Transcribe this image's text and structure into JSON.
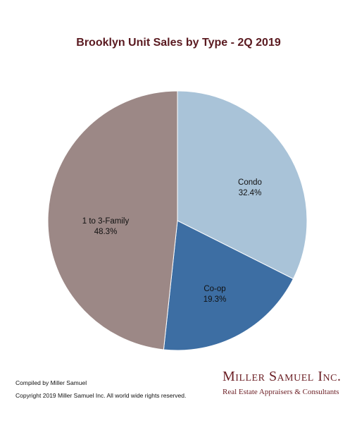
{
  "chart_data": {
    "type": "pie",
    "title": "Brooklyn Unit Sales by Type - 2Q 2019",
    "slices": [
      {
        "label": "Condo",
        "value": 32.4,
        "value_label": "32.4%",
        "color": "#a9c3d8"
      },
      {
        "label": "Co-op",
        "value": 19.3,
        "value_label": "19.3%",
        "color": "#3d6ea3"
      },
      {
        "label": "1 to 3-Family",
        "value": 48.3,
        "value_label": "48.3%",
        "color": "#9c8886"
      }
    ],
    "start_angle": "12 o'clock",
    "direction": "clockwise"
  },
  "footer": {
    "compiled_by": "Compiled by Miller Samuel",
    "copyright": "Copyright 2019 Miller Samuel Inc.  All world wide rights reserved."
  },
  "brand": {
    "name": "Miller Samuel Inc.",
    "tagline": "Real Estate Appraisers & Consultants",
    "color": "#6b1e24"
  }
}
